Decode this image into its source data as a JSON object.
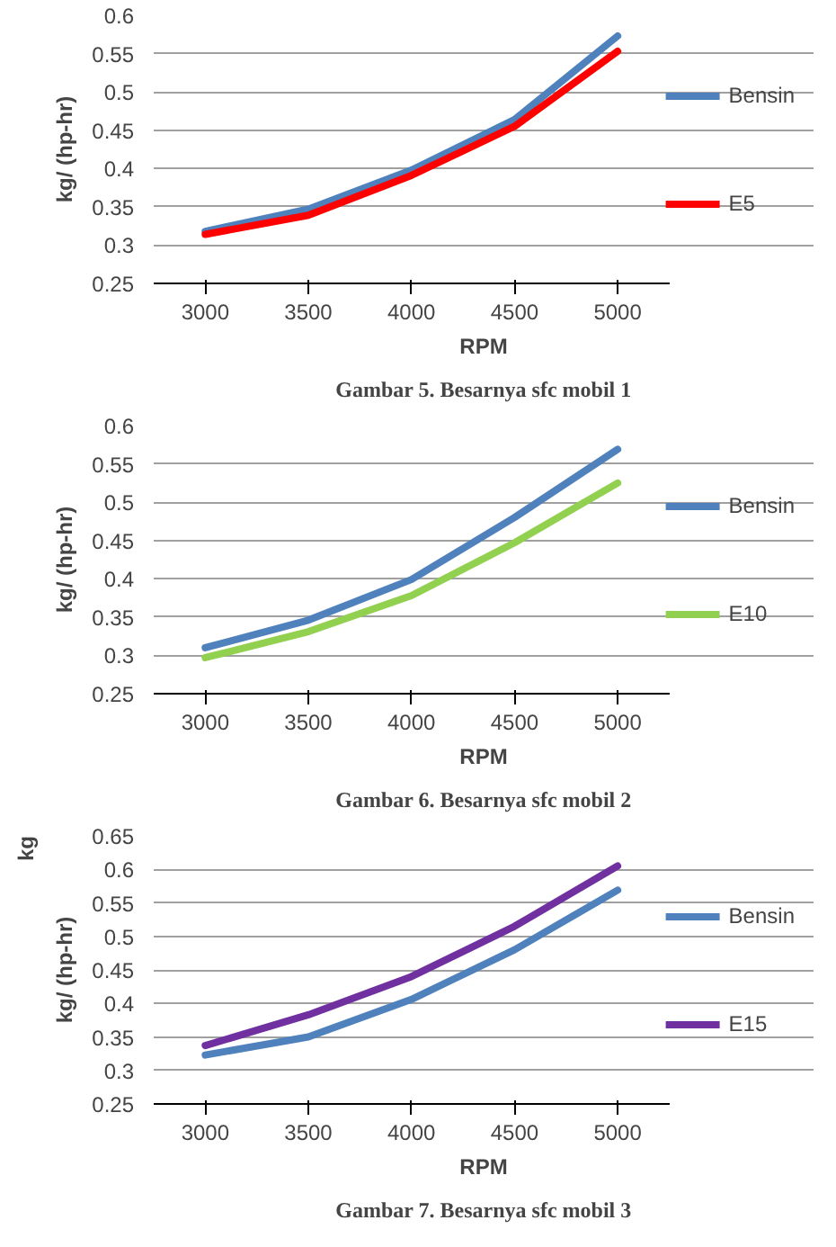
{
  "chart_data": [
    {
      "type": "line",
      "title": "Gambar 5. Besarnya sfc mobil 1",
      "xlabel": "RPM",
      "ylabel": "kg/ (hp-hr)",
      "categories": [
        "3000",
        "3500",
        "4000",
        "4500",
        "5000"
      ],
      "series": [
        {
          "name": "Bensin",
          "color": "#4f81bd",
          "values": [
            0.318,
            0.347,
            0.398,
            0.464,
            0.573
          ]
        },
        {
          "name": "E5",
          "color": "#ff0000",
          "values": [
            0.314,
            0.339,
            0.391,
            0.455,
            0.553
          ]
        }
      ],
      "ylim": [
        0.25,
        0.6
      ],
      "yticks": [
        0.25,
        0.3,
        0.35,
        0.4,
        0.45,
        0.5,
        0.55,
        0.6
      ],
      "grid": "y",
      "legend": "right"
    },
    {
      "type": "line",
      "title": "Gambar 6. Besarnya sfc mobil 2",
      "xlabel": "RPM",
      "ylabel": "kg/ (hp-hr)",
      "categories": [
        "3000",
        "3500",
        "4000",
        "4500",
        "5000"
      ],
      "series": [
        {
          "name": "Bensin",
          "color": "#4f81bd",
          "values": [
            0.31,
            0.346,
            0.399,
            0.48,
            0.569
          ]
        },
        {
          "name": "E10",
          "color": "#92d050",
          "values": [
            0.297,
            0.331,
            0.378,
            0.447,
            0.525
          ]
        }
      ],
      "ylim": [
        0.25,
        0.6
      ],
      "yticks": [
        0.25,
        0.3,
        0.35,
        0.4,
        0.45,
        0.5,
        0.55,
        0.6
      ],
      "grid": "y",
      "legend": "right"
    },
    {
      "type": "line",
      "title": "Gambar 7. Besarnya sfc mobil 3",
      "xlabel": "RPM",
      "ylabel": "kg/ (hp-hr)",
      "annotations": [
        "kg"
      ],
      "categories": [
        "3000",
        "3500",
        "4000",
        "4500",
        "5000"
      ],
      "series": [
        {
          "name": "Bensin",
          "color": "#4f81bd",
          "values": [
            0.323,
            0.35,
            0.406,
            0.48,
            0.569
          ]
        },
        {
          "name": "E15",
          "color": "#7030a0",
          "values": [
            0.337,
            0.383,
            0.44,
            0.515,
            0.605
          ]
        }
      ],
      "ylim": [
        0.25,
        0.65
      ],
      "yticks": [
        0.25,
        0.3,
        0.35,
        0.4,
        0.45,
        0.5,
        0.55,
        0.6,
        0.65
      ],
      "grid": "y",
      "legend": "right"
    }
  ]
}
